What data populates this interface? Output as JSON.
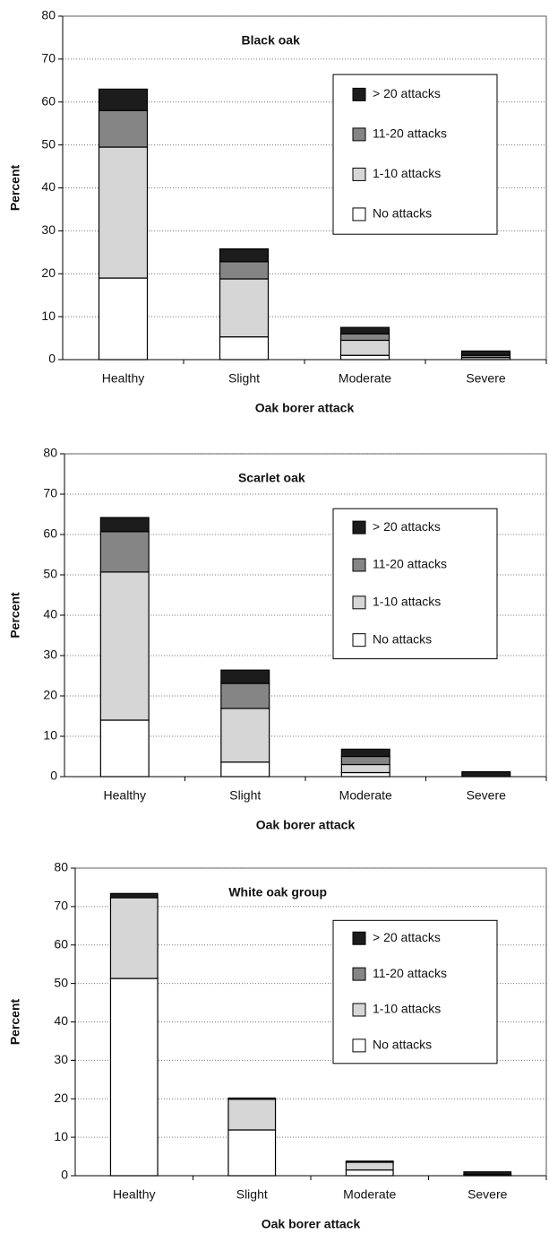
{
  "chart_data": [
    {
      "type": "stacked_bar",
      "title": "Black oak",
      "x_label": "Oak borer attack",
      "y_label": "Percent",
      "categories": [
        "Healthy",
        "Slight",
        "Moderate",
        "Severe"
      ],
      "series": [
        {
          "name": "No attacks",
          "color": "#ffffff",
          "values": [
            19,
            5.3,
            1,
            0
          ]
        },
        {
          "name": "1-10 attacks",
          "color": "#d6d6d6",
          "values": [
            30.5,
            13.5,
            3.5,
            0.5
          ]
        },
        {
          "name": "11-20 attacks",
          "color": "#858585",
          "values": [
            8.5,
            4,
            1.5,
            0.5
          ]
        },
        {
          "name": "> 20 attacks",
          "color": "#1c1c1c",
          "values": [
            5,
            3,
            1.5,
            1
          ]
        }
      ],
      "ylim": [
        0,
        80
      ],
      "yticks": [
        0,
        10,
        20,
        30,
        40,
        50,
        60,
        70,
        80
      ],
      "grid": true,
      "legend": "upper right"
    },
    {
      "type": "stacked_bar",
      "title": "Scarlet oak",
      "x_label": "Oak borer attack",
      "y_label": "Percent",
      "categories": [
        "Healthy",
        "Slight",
        "Moderate",
        "Severe"
      ],
      "series": [
        {
          "name": "No attacks",
          "color": "#ffffff",
          "values": [
            14,
            3.6,
            1,
            0
          ]
        },
        {
          "name": "1-10 attacks",
          "color": "#d6d6d6",
          "values": [
            36.7,
            13.3,
            2,
            0
          ]
        },
        {
          "name": "11-20 attacks",
          "color": "#858585",
          "values": [
            10,
            6.2,
            2,
            0
          ]
        },
        {
          "name": "> 20 attacks",
          "color": "#1c1c1c",
          "values": [
            3.5,
            3.3,
            1.8,
            1.2
          ]
        }
      ],
      "ylim": [
        0,
        80
      ],
      "yticks": [
        0,
        10,
        20,
        30,
        40,
        50,
        60,
        70,
        80
      ],
      "grid": true,
      "legend": "upper right"
    },
    {
      "type": "stacked_bar",
      "title": "White oak group",
      "x_label": "Oak borer attack",
      "y_label": "Percent",
      "categories": [
        "Healthy",
        "Slight",
        "Moderate",
        "Severe"
      ],
      "series": [
        {
          "name": "No attacks",
          "color": "#ffffff",
          "values": [
            51.3,
            11.9,
            1.5,
            0
          ]
        },
        {
          "name": "1-10 attacks",
          "color": "#d6d6d6",
          "values": [
            21,
            8,
            2,
            0.3
          ]
        },
        {
          "name": "11-20 attacks",
          "color": "#858585",
          "values": [
            0,
            0,
            0,
            0
          ]
        },
        {
          "name": "> 20 attacks",
          "color": "#1c1c1c",
          "values": [
            1.1,
            0.3,
            0.3,
            0.7
          ]
        }
      ],
      "ylim": [
        0,
        80
      ],
      "yticks": [
        0,
        10,
        20,
        30,
        40,
        50,
        60,
        70,
        80
      ],
      "grid": true,
      "legend": "upper right"
    }
  ]
}
